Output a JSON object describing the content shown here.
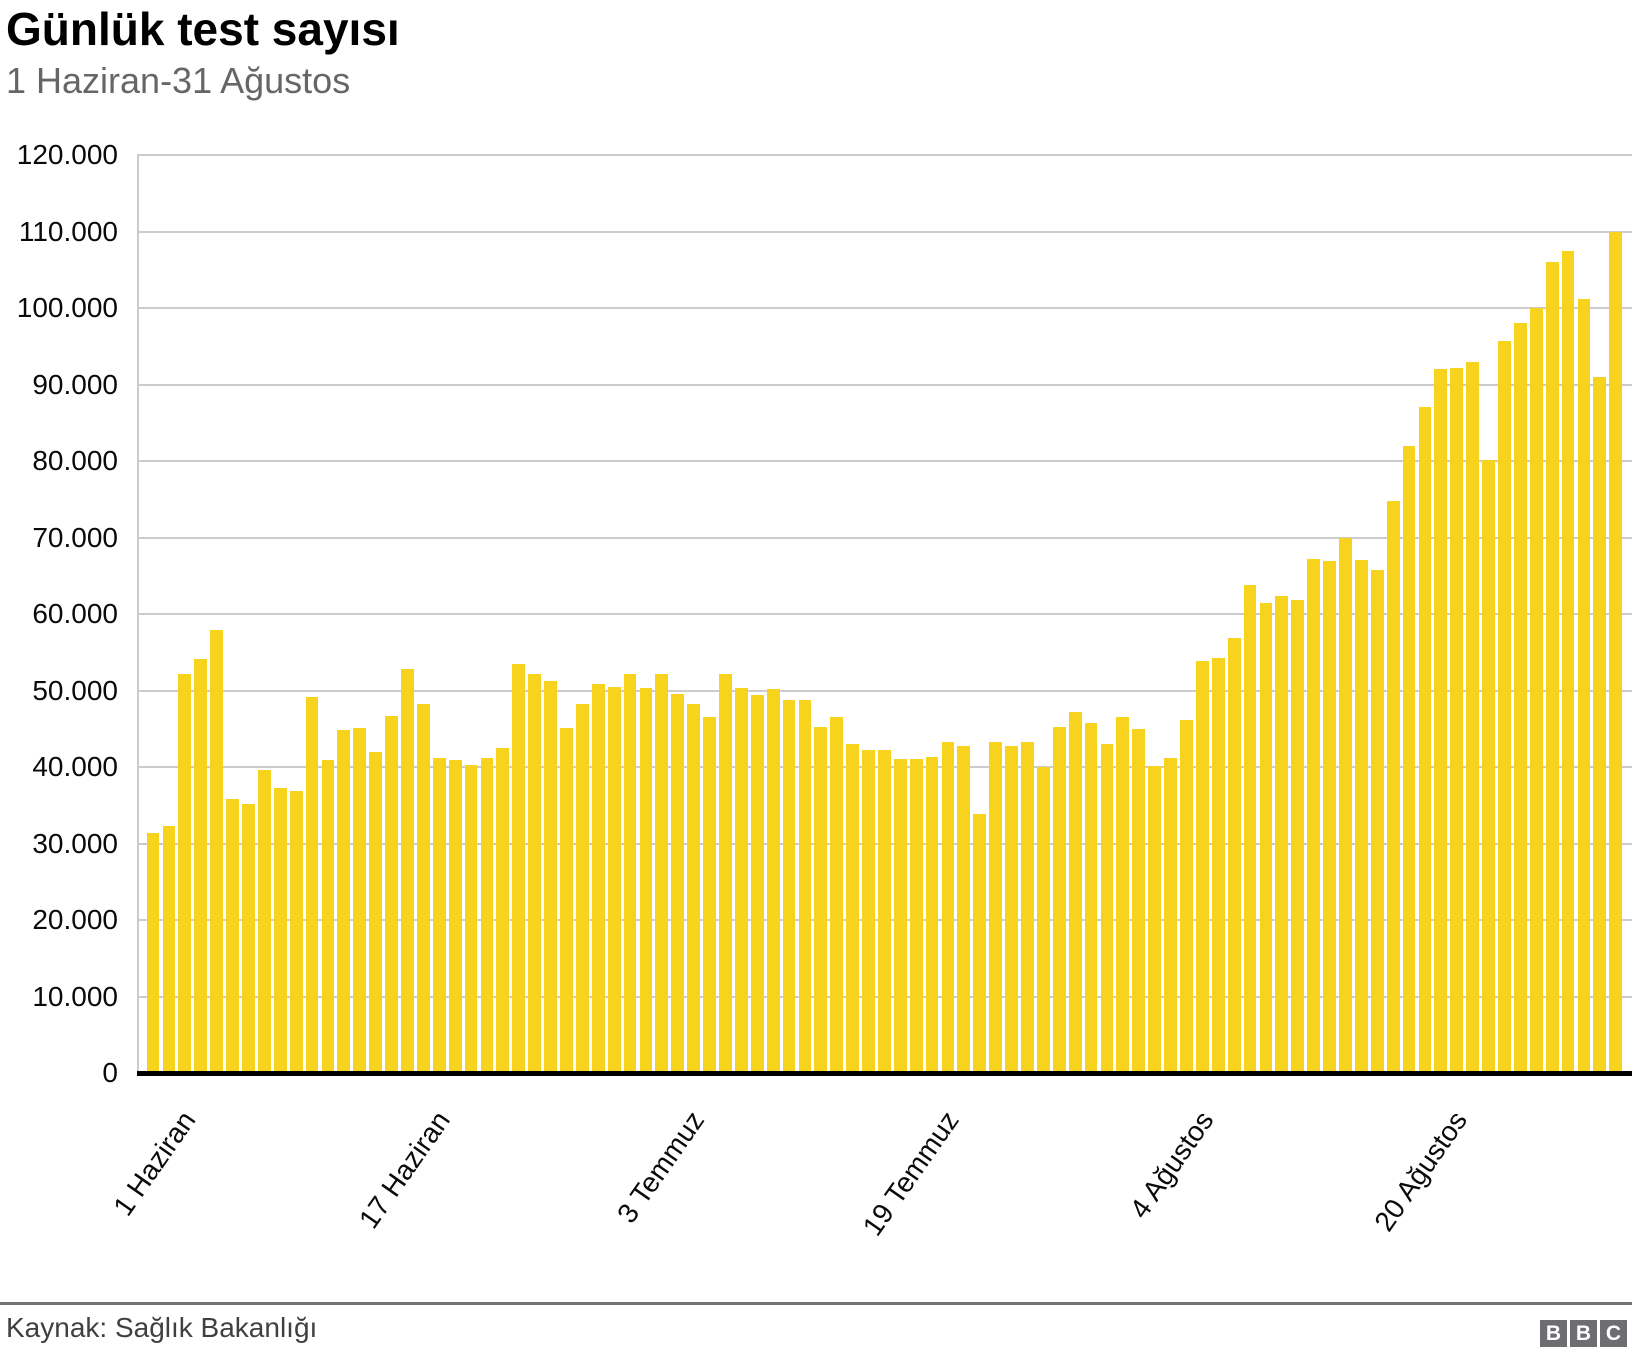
{
  "header": {
    "title": "Günlük test sayısı",
    "subtitle": "1 Haziran-31 Ağustos"
  },
  "footer": {
    "source": "Kaynak: Sağlık Bakanlığı",
    "logo_letters": [
      "B",
      "B",
      "C"
    ]
  },
  "colors": {
    "bar": "#F7D31E",
    "grid": "#cccccc",
    "baseline": "#000000",
    "title": "#000000",
    "subtitle": "#666666",
    "tick_label": "#0a0a0a",
    "source_text": "#404040",
    "divider": "#737373",
    "logo_bg": "#6d6d72"
  },
  "chart_data": {
    "type": "bar",
    "title": "Günlük test sayısı",
    "subtitle": "1 Haziran-31 Ağustos",
    "xlabel": "",
    "ylabel": "",
    "ylim": [
      0,
      120000
    ],
    "grid": true,
    "legend": false,
    "bar_color": "#F7D31E",
    "y_ticks": [
      {
        "value": 0,
        "label": "0"
      },
      {
        "value": 10000,
        "label": "10.000"
      },
      {
        "value": 20000,
        "label": "20.000"
      },
      {
        "value": 30000,
        "label": "30.000"
      },
      {
        "value": 40000,
        "label": "40.000"
      },
      {
        "value": 50000,
        "label": "50.000"
      },
      {
        "value": 60000,
        "label": "60.000"
      },
      {
        "value": 70000,
        "label": "70.000"
      },
      {
        "value": 80000,
        "label": "80.000"
      },
      {
        "value": 90000,
        "label": "90.000"
      },
      {
        "value": 100000,
        "label": "100.000"
      },
      {
        "value": 110000,
        "label": "110.000"
      },
      {
        "value": 120000,
        "label": "120.000"
      }
    ],
    "x_ticks": [
      {
        "index": 0,
        "label": "1 Haziran"
      },
      {
        "index": 16,
        "label": "17 Haziran"
      },
      {
        "index": 32,
        "label": "3 Temmuz"
      },
      {
        "index": 48,
        "label": "19 Temmuz"
      },
      {
        "index": 64,
        "label": "4 Ağustos"
      },
      {
        "index": 80,
        "label": "20 Ağustos"
      }
    ],
    "values": [
      31400,
      32300,
      52200,
      54100,
      57900,
      35800,
      35200,
      39600,
      37200,
      36900,
      49200,
      40900,
      44900,
      45100,
      42000,
      46700,
      52800,
      48300,
      41200,
      40900,
      40300,
      41200,
      42500,
      53500,
      52200,
      51200,
      45100,
      48300,
      50900,
      50400,
      52200,
      50300,
      52100,
      49600,
      48300,
      46500,
      52200,
      50300,
      49400,
      50200,
      48800,
      48800,
      45200,
      46500,
      43000,
      42200,
      42200,
      41100,
      41000,
      41300,
      43300,
      42800,
      33900,
      43300,
      42700,
      43300,
      40000,
      45200,
      47200,
      45700,
      43000,
      46600,
      45000,
      40100,
      41200,
      46200,
      53900,
      54300,
      56800,
      63800,
      61500,
      62300,
      61800,
      67200,
      66900,
      70000,
      67000,
      65700,
      74800,
      82000,
      87100,
      92000,
      92100,
      92900,
      80100,
      95700,
      98000,
      100000,
      106000,
      107500,
      101200,
      91000,
      110000
    ]
  }
}
